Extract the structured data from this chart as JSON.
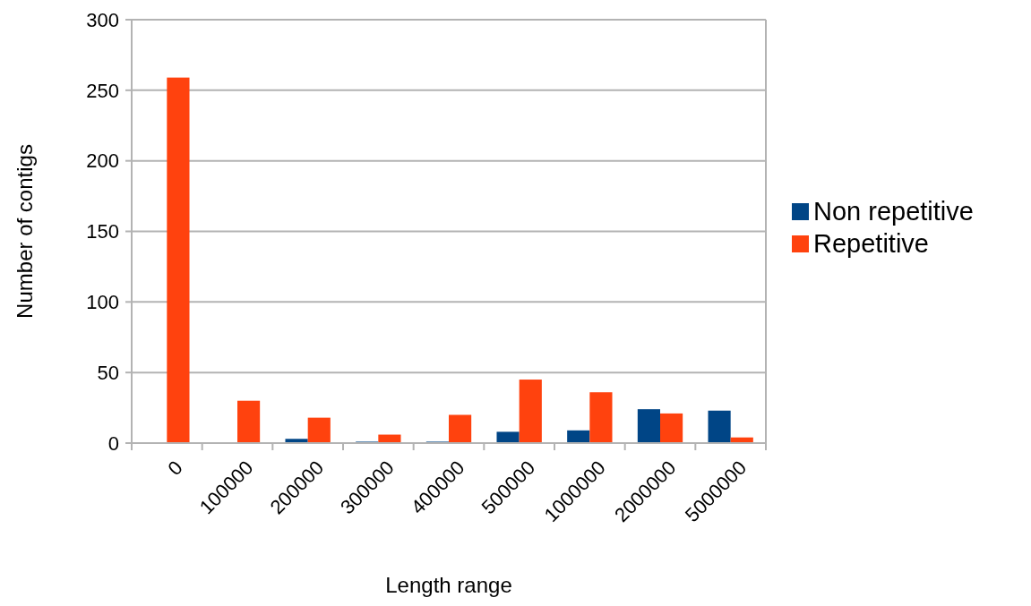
{
  "chart_data": {
    "type": "bar",
    "xlabel": "Length range",
    "ylabel": "Number of contigs",
    "categories": [
      "0",
      "100000",
      "200000",
      "300000",
      "400000",
      "500000",
      "1000000",
      "2000000",
      "5000000"
    ],
    "series": [
      {
        "name": "Non repetitive",
        "color": "#004586",
        "values": [
          0,
          0,
          3,
          1,
          1,
          8,
          9,
          24,
          23
        ]
      },
      {
        "name": "Repetitive",
        "color": "#ff420e",
        "values": [
          259,
          30,
          18,
          6,
          20,
          45,
          36,
          21,
          4
        ]
      }
    ],
    "ylim": [
      0,
      300
    ],
    "yticks": [
      0,
      50,
      100,
      150,
      200,
      250,
      300
    ],
    "grid": "y",
    "legend": "right"
  }
}
